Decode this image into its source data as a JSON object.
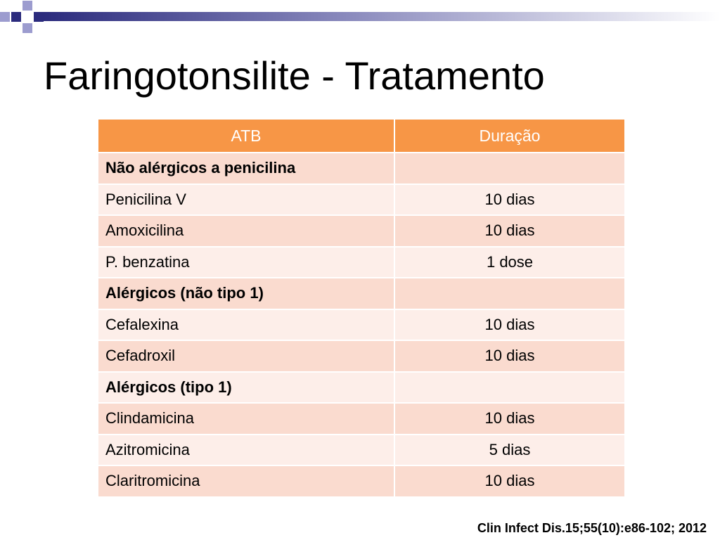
{
  "slide": {
    "title": "Faringotonsilite - Tratamento",
    "citation": "Clin Infect Dis.15;55(10):e86-102; 2012"
  },
  "table": {
    "headers": [
      "ATB",
      "Duração"
    ],
    "groups": [
      {
        "label": "Não alérgicos a penicilina",
        "items": [
          {
            "atb": "Penicilina V",
            "duracao": "10 dias"
          },
          {
            "atb": "Amoxicilina",
            "duracao": "10 dias"
          },
          {
            "atb": "P. benzatina",
            "duracao": "1 dose"
          }
        ]
      },
      {
        "label": "Alérgicos (não tipo 1)",
        "items": [
          {
            "atb": "Cefalexina",
            "duracao": "10 dias"
          },
          {
            "atb": "Cefadroxil",
            "duracao": "10 dias"
          }
        ]
      },
      {
        "label": "Alérgicos (tipo 1)",
        "items": [
          {
            "atb": "Clindamicina",
            "duracao": "10 dias"
          },
          {
            "atb": "Azitromicina",
            "duracao": "5 dias"
          },
          {
            "atb": "Claritromicina",
            "duracao": "10 dias"
          }
        ]
      }
    ]
  },
  "colors": {
    "accent": "#F79646",
    "band_dark": "#FADBCF",
    "band_light": "#FDEEE9",
    "decor_navy": "#2B2B7D",
    "decor_lavender": "#9C9CCF"
  }
}
